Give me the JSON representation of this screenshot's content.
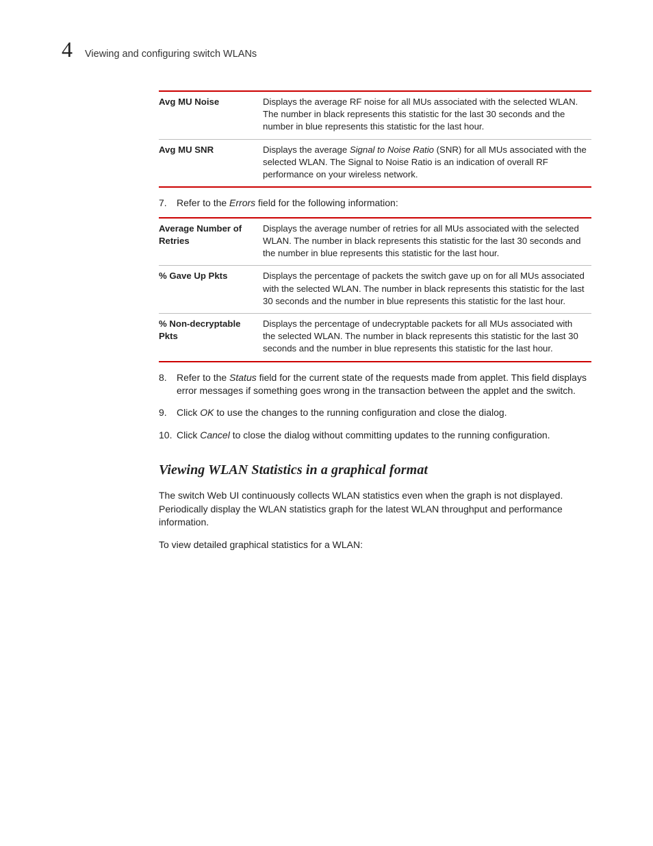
{
  "header": {
    "chapter_number": "4",
    "chapter_title": "Viewing and configuring switch WLANs"
  },
  "table1": [
    {
      "term": "Avg MU Noise",
      "desc": "Displays the average RF noise for all MUs associated with the selected WLAN. The number in black represents this statistic for the last 30 seconds and the number in blue represents this statistic for the last hour."
    },
    {
      "term": "Avg MU SNR",
      "desc_pre": "Displays the average ",
      "desc_italic": "Signal to Noise Ratio",
      "desc_post": " (SNR) for all MUs associated with the selected WLAN. The Signal to Noise Ratio is an indication of overall RF performance on your wireless network."
    }
  ],
  "step7": {
    "num": "7.",
    "pre": "Refer to the ",
    "italic": "Errors",
    "post": " field for the following information:"
  },
  "table2": [
    {
      "term": "Average Number of Retries",
      "desc": "Displays the average number of retries for all MUs associated with the selected WLAN. The number in black represents this statistic for the last 30 seconds and the number in blue represents this statistic for the last hour."
    },
    {
      "term": "% Gave Up Pkts",
      "desc": "Displays the percentage of packets the switch gave up on for all MUs associated with the selected WLAN. The number in black represents this statistic for the last 30 seconds and the number in blue represents this statistic for the last hour."
    },
    {
      "term": "% Non-decryptable Pkts",
      "desc": "Displays the percentage of undecryptable packets for all MUs associated with the selected WLAN. The number in black represents this statistic for the last 30 seconds and the number in blue represents this statistic for the last hour."
    }
  ],
  "step8": {
    "num": "8.",
    "pre": "Refer to the ",
    "italic": "Status",
    "post": " field for the current state of the requests made from applet. This field displays error messages if something goes wrong in the transaction between the applet and the switch."
  },
  "step9": {
    "num": "9.",
    "pre": "Click ",
    "italic": "OK",
    "post": " to use the changes to the running configuration and close the dialog."
  },
  "step10": {
    "num": "10.",
    "pre": "Click ",
    "italic": "Cancel",
    "post": " to close the dialog without committing updates to the running configuration."
  },
  "section_heading": "Viewing WLAN Statistics in a graphical format",
  "para1": "The switch Web UI continuously collects WLAN statistics even when the graph is not displayed. Periodically display the WLAN statistics graph for the latest WLAN throughput and performance information.",
  "para2": "To view detailed graphical statistics for a WLAN:"
}
